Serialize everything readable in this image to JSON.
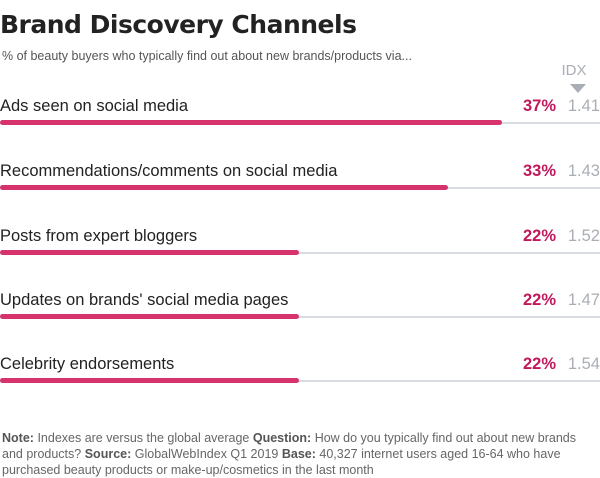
{
  "title": "Brand Discovery Channels",
  "subtitle": "% of beauty buyers who typically find out about new brands/products via...",
  "idx_header": "IDX",
  "colors": {
    "bar": "#d6336c",
    "pct_text": "#c2185b",
    "idx_text": "#a9aeb5",
    "track": "#d9dce1"
  },
  "chart_data": {
    "type": "bar",
    "orientation": "horizontal",
    "categories": [
      "Ads seen on social media",
      "Recommendations/comments on social media",
      "Posts from expert bloggers",
      "Updates on brands' social media pages",
      "Celebrity endorsements"
    ],
    "values": [
      37,
      33,
      22,
      22,
      22
    ],
    "value_labels": [
      "37%",
      "33%",
      "22%",
      "22%",
      "22%"
    ],
    "idx_values": [
      "1.41",
      "1.43",
      "1.52",
      "1.47",
      "1.54"
    ],
    "xlim": [
      0,
      40
    ],
    "grid": false
  },
  "footnote": {
    "note_label": "Note:",
    "note_text": "Indexes are versus the global average",
    "question_label": "Question:",
    "question_text": "How do you typically find out about new brands and products?",
    "source_label": "Source:",
    "source_text": "GlobalWebIndex Q1 2019",
    "base_label": "Base:",
    "base_text": "40,327 internet users aged 16-64 who have purchased beauty products or make-up/cosmetics in the last month"
  }
}
